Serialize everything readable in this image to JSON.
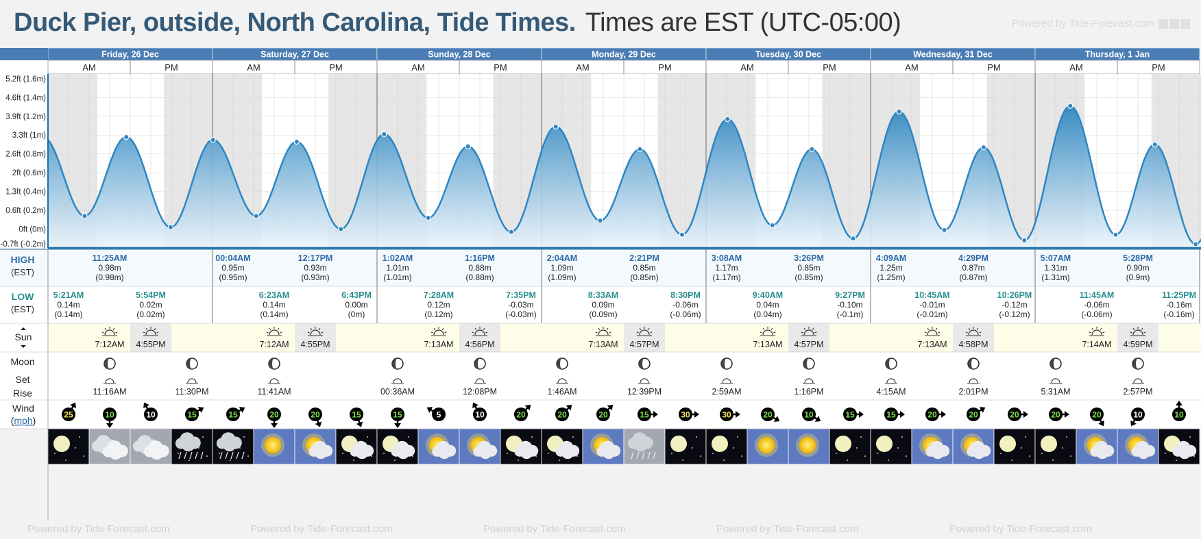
{
  "header": {
    "title": "Duck Pier, outside, North Carolina, Tide Times.",
    "tz_note": "Times are EST (UTC-05:00)",
    "powered_by": "Powered by Tide-Forecast.com"
  },
  "chart_data": {
    "type": "area",
    "days": [
      "Friday, 26 Dec",
      "Saturday, 27 Dec",
      "Sunday, 28 Dec",
      "Monday, 29 Dec",
      "Tuesday, 30 Dec",
      "Wednesday, 31 Dec",
      "Thursday, 1 Jan"
    ],
    "half_labels": [
      "AM",
      "PM"
    ],
    "yticks": [
      "5.2ft (1.6m)",
      "4.6ft (1.4m)",
      "3.9ft (1.2m)",
      "3.3ft (1m)",
      "2.6ft (0.8m)",
      "2ft (0.6m)",
      "1.3ft (0.4m)",
      "0.6ft (0.2m)",
      "0ft (0m)",
      "-0.7ft (-0.2m)"
    ],
    "ytick_values_m": [
      1.6,
      1.4,
      1.2,
      1.0,
      0.8,
      0.6,
      0.4,
      0.2,
      0.0,
      -0.2
    ],
    "ylim_m": [
      -0.2,
      1.65
    ],
    "tides": [
      {
        "day": 0,
        "type": "low",
        "time": "5:21AM",
        "m": "0.14m",
        "paren": "(0.14m)",
        "hours": 5.35,
        "value": 0.14
      },
      {
        "day": 0,
        "type": "high",
        "time": "11:25AM",
        "m": "0.98m",
        "paren": "(0.98m)",
        "hours": 11.42,
        "value": 0.98
      },
      {
        "day": 0,
        "type": "low",
        "time": "5:54PM",
        "m": "0.02m",
        "paren": "(0.02m)",
        "hours": 17.9,
        "value": 0.02
      },
      {
        "day": 1,
        "type": "high",
        "time": "00:04AM",
        "m": "0.95m",
        "paren": "(0.95m)",
        "hours": 24.07,
        "value": 0.95
      },
      {
        "day": 1,
        "type": "low",
        "time": "6:23AM",
        "m": "0.14m",
        "paren": "(0.14m)",
        "hours": 30.38,
        "value": 0.14
      },
      {
        "day": 1,
        "type": "high",
        "time": "12:17PM",
        "m": "0.93m",
        "paren": "(0.93m)",
        "hours": 36.28,
        "value": 0.93
      },
      {
        "day": 1,
        "type": "low",
        "time": "6:43PM",
        "m": "0.00m",
        "paren": "(0m)",
        "hours": 42.72,
        "value": 0.0
      },
      {
        "day": 2,
        "type": "high",
        "time": "1:02AM",
        "m": "1.01m",
        "paren": "(1.01m)",
        "hours": 49.03,
        "value": 1.01
      },
      {
        "day": 2,
        "type": "low",
        "time": "7:28AM",
        "m": "0.12m",
        "paren": "(0.12m)",
        "hours": 55.47,
        "value": 0.12
      },
      {
        "day": 2,
        "type": "high",
        "time": "1:16PM",
        "m": "0.88m",
        "paren": "(0.88m)",
        "hours": 61.27,
        "value": 0.88
      },
      {
        "day": 2,
        "type": "low",
        "time": "7:35PM",
        "m": "-0.03m",
        "paren": "(-0.03m)",
        "hours": 67.58,
        "value": -0.03
      },
      {
        "day": 3,
        "type": "high",
        "time": "2:04AM",
        "m": "1.09m",
        "paren": "(1.09m)",
        "hours": 74.07,
        "value": 1.09
      },
      {
        "day": 3,
        "type": "low",
        "time": "8:33AM",
        "m": "0.09m",
        "paren": "(0.09m)",
        "hours": 80.55,
        "value": 0.09
      },
      {
        "day": 3,
        "type": "high",
        "time": "2:21PM",
        "m": "0.85m",
        "paren": "(0.85m)",
        "hours": 86.35,
        "value": 0.85
      },
      {
        "day": 3,
        "type": "low",
        "time": "8:30PM",
        "m": "-0.06m",
        "paren": "(-0.06m)",
        "hours": 92.5,
        "value": -0.06
      },
      {
        "day": 4,
        "type": "high",
        "time": "3:08AM",
        "m": "1.17m",
        "paren": "(1.17m)",
        "hours": 99.13,
        "value": 1.17
      },
      {
        "day": 4,
        "type": "low",
        "time": "9:40AM",
        "m": "0.04m",
        "paren": "(0.04m)",
        "hours": 105.67,
        "value": 0.04
      },
      {
        "day": 4,
        "type": "high",
        "time": "3:26PM",
        "m": "0.85m",
        "paren": "(0.85m)",
        "hours": 111.43,
        "value": 0.85
      },
      {
        "day": 4,
        "type": "low",
        "time": "9:27PM",
        "m": "-0.10m",
        "paren": "(-0.1m)",
        "hours": 117.45,
        "value": -0.1
      },
      {
        "day": 5,
        "type": "high",
        "time": "4:09AM",
        "m": "1.25m",
        "paren": "(1.25m)",
        "hours": 124.15,
        "value": 1.25
      },
      {
        "day": 5,
        "type": "low",
        "time": "10:45AM",
        "m": "-0.01m",
        "paren": "(-0.01m)",
        "hours": 130.75,
        "value": -0.01
      },
      {
        "day": 5,
        "type": "high",
        "time": "4:29PM",
        "m": "0.87m",
        "paren": "(0.87m)",
        "hours": 136.48,
        "value": 0.87
      },
      {
        "day": 5,
        "type": "low",
        "time": "10:26PM",
        "m": "-0.12m",
        "paren": "(-0.12m)",
        "hours": 142.43,
        "value": -0.12
      },
      {
        "day": 6,
        "type": "high",
        "time": "5:07AM",
        "m": "1.31m",
        "paren": "(1.31m)",
        "hours": 149.12,
        "value": 1.31
      },
      {
        "day": 6,
        "type": "low",
        "time": "11:45AM",
        "m": "-0.06m",
        "paren": "(-0.06m)",
        "hours": 155.75,
        "value": -0.06
      },
      {
        "day": 6,
        "type": "high",
        "time": "5:28PM",
        "m": "0.90m",
        "paren": "(0.9m)",
        "hours": 161.47,
        "value": 0.9
      },
      {
        "day": 6,
        "type": "low",
        "time": "11:25PM",
        "m": "-0.16m",
        "paren": "(-0.16m)",
        "hours": 167.42,
        "value": -0.16
      }
    ],
    "sun": [
      {
        "rise": "7:12AM",
        "set": "4:55PM",
        "rise_h": 7.2,
        "set_h": 16.92
      },
      {
        "rise": "7:12AM",
        "set": "4:55PM",
        "rise_h": 7.2,
        "set_h": 16.92
      },
      {
        "rise": "7:13AM",
        "set": "4:56PM",
        "rise_h": 7.22,
        "set_h": 16.93
      },
      {
        "rise": "7:13AM",
        "set": "4:57PM",
        "rise_h": 7.22,
        "set_h": 16.95
      },
      {
        "rise": "7:13AM",
        "set": "4:57PM",
        "rise_h": 7.22,
        "set_h": 16.95
      },
      {
        "rise": "7:13AM",
        "set": "4:58PM",
        "rise_h": 7.22,
        "set_h": 16.97
      },
      {
        "rise": "7:14AM",
        "set": "4:59PM",
        "rise_h": 7.23,
        "set_h": 16.98
      }
    ],
    "moon": [
      {
        "day": 0,
        "time": "11:16AM",
        "slot": 1
      },
      {
        "day": 0,
        "time": "11:30PM",
        "slot": 3
      },
      {
        "day": 1,
        "time": "11:41AM",
        "slot": 1
      },
      {
        "day": 2,
        "time": "00:36AM",
        "slot": 0
      },
      {
        "day": 2,
        "time": "12:08PM",
        "slot": 2
      },
      {
        "day": 3,
        "time": "1:46AM",
        "slot": 0
      },
      {
        "day": 3,
        "time": "12:39PM",
        "slot": 2
      },
      {
        "day": 4,
        "time": "2:59AM",
        "slot": 0
      },
      {
        "day": 4,
        "time": "1:16PM",
        "slot": 2
      },
      {
        "day": 5,
        "time": "4:15AM",
        "slot": 0
      },
      {
        "day": 5,
        "time": "2:01PM",
        "slot": 2
      },
      {
        "day": 6,
        "time": "5:31AM",
        "slot": 0
      },
      {
        "day": 6,
        "time": "2:57PM",
        "slot": 2
      }
    ],
    "wind": [
      25,
      10,
      10,
      15,
      15,
      20,
      20,
      15,
      15,
      5,
      10,
      20,
      20,
      20,
      15,
      30,
      30,
      20,
      10,
      15,
      15,
      20,
      20,
      20,
      20,
      20,
      10,
      10
    ],
    "wind_colors": [
      "#f5e663",
      "#7be04a",
      "#ffffff",
      "#7be04a",
      "#7be04a",
      "#7be04a",
      "#7be04a",
      "#7be04a",
      "#7be04a",
      "#ffffff",
      "#ffffff",
      "#7be04a",
      "#7be04a",
      "#7be04a",
      "#7be04a",
      "#f5e663",
      "#f5e663",
      "#7be04a",
      "#7be04a",
      "#7be04a",
      "#7be04a",
      "#7be04a",
      "#7be04a",
      "#7be04a",
      "#7be04a",
      "#7be04a",
      "#ffffff",
      "#7be04a"
    ],
    "wind_dir_deg": [
      30,
      180,
      330,
      60,
      60,
      180,
      160,
      160,
      180,
      300,
      330,
      45,
      45,
      45,
      90,
      90,
      90,
      120,
      120,
      90,
      90,
      90,
      60,
      90,
      90,
      150,
      210,
      0
    ],
    "weather": [
      "moon",
      "cloud",
      "cloud",
      "rain-night",
      "rain-night",
      "sun",
      "sun-cloud",
      "moon-cloud",
      "moon-cloud",
      "sun-cloud",
      "sun-cloud",
      "moon-cloud",
      "moon-cloud",
      "sun-cloud",
      "rain",
      "moon",
      "moon",
      "sun",
      "sun",
      "moon",
      "moon",
      "sun-cloud",
      "sun-cloud",
      "moon",
      "moon",
      "sun-cloud",
      "sun-cloud",
      "moon-cloud"
    ]
  },
  "labels": {
    "high": "HIGH",
    "low": "LOW",
    "est": "(EST)",
    "sun": "Sun",
    "moon": "Moon",
    "set": "Set",
    "rise": "Rise",
    "wind": "Wind",
    "wind_unit": "mph"
  },
  "colors": {
    "header_blue": "#4a7db5",
    "tide_line": "#2f86c0",
    "fill_top": "#2f86c0",
    "fill_bottom": "#eaf4fb",
    "night": "#e6e6e6",
    "high_text": "#2c6aa8",
    "low_text": "#2a8f8f"
  }
}
